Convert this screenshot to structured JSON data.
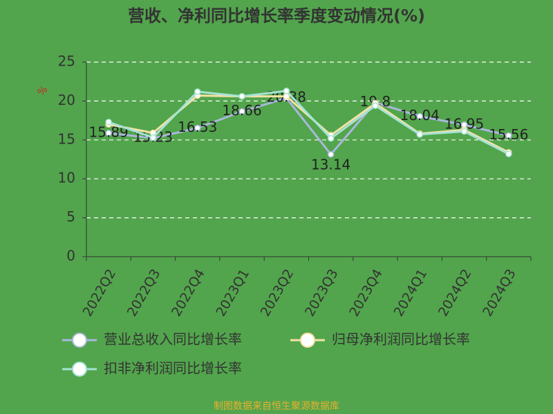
{
  "chart_data": {
    "type": "line",
    "title": "营收、净利同比增长率季度变动情况(%)",
    "y_unit": "%",
    "categories": [
      "2022Q2",
      "2022Q3",
      "2022Q4",
      "2023Q1",
      "2023Q2",
      "2023Q3",
      "2023Q4",
      "2024Q1",
      "2024Q2",
      "2024Q3"
    ],
    "series": [
      {
        "name": "营业总收入同比增长率",
        "color": "#a9b8dc",
        "values": [
          15.89,
          15.23,
          16.53,
          18.66,
          20.38,
          13.14,
          19.8,
          18.04,
          16.95,
          15.56
        ],
        "show_labels": true
      },
      {
        "name": "归母净利润同比增长率",
        "color": "#f6e2a6",
        "values": [
          17.0,
          15.9,
          20.7,
          20.6,
          20.6,
          15.6,
          19.7,
          15.8,
          16.3,
          13.4
        ],
        "show_labels": false
      },
      {
        "name": "扣非净利润同比增长率",
        "color": "#a6e3d6",
        "values": [
          17.3,
          15.3,
          21.2,
          20.6,
          21.3,
          15.2,
          19.4,
          15.7,
          16.1,
          13.2
        ],
        "show_labels": false
      }
    ],
    "ylim": [
      0,
      25
    ],
    "yticks": [
      0,
      5,
      10,
      15,
      20,
      25
    ],
    "grid": true,
    "footer": "制图数据来自恒生聚源数据库"
  }
}
